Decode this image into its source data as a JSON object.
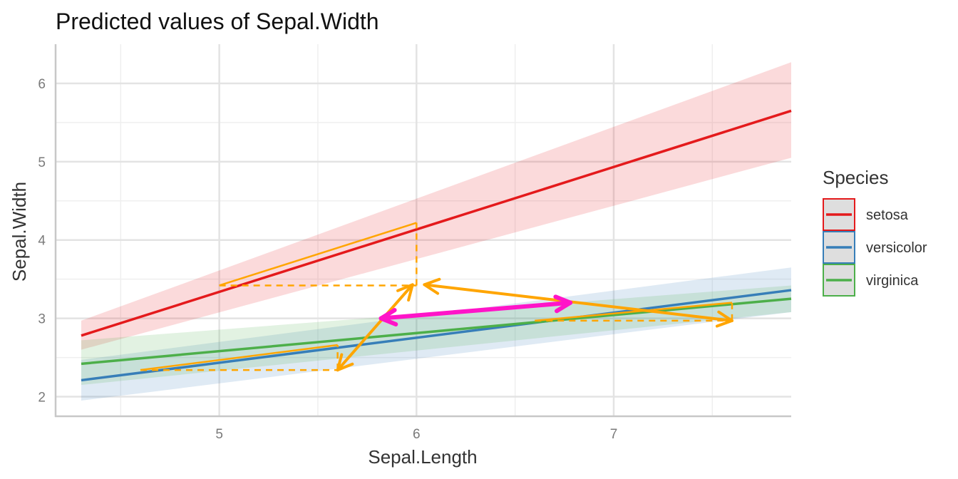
{
  "chart_data": {
    "type": "line",
    "title": "Predicted values of Sepal.Width",
    "xlabel": "Sepal.Length",
    "ylabel": "Sepal.Width",
    "xlim": [
      4.17,
      7.9
    ],
    "ylim": [
      1.75,
      6.5
    ],
    "x_ticks": [
      5,
      6,
      7
    ],
    "x_minor": [
      4.5,
      5.5,
      6.5,
      7.5
    ],
    "y_ticks": [
      2,
      3,
      4,
      5,
      6
    ],
    "y_minor": [
      2.5,
      3.5,
      4.5,
      5.5
    ],
    "grid": true,
    "legend": {
      "title": "Species",
      "position": "right"
    },
    "series": [
      {
        "name": "setosa",
        "color": "#E41A1C",
        "x": [
          4.3,
          7.9
        ],
        "y": [
          2.78,
          5.65
        ],
        "ci_low": [
          2.6,
          5.05
        ],
        "ci_high": [
          2.97,
          6.27
        ]
      },
      {
        "name": "versicolor",
        "color": "#377EB8",
        "x": [
          4.3,
          7.9
        ],
        "y": [
          2.21,
          3.36
        ],
        "ci_low": [
          1.95,
          3.08
        ],
        "ci_high": [
          2.47,
          3.65
        ]
      },
      {
        "name": "virginica",
        "color": "#4DAF4A",
        "x": [
          4.3,
          7.9
        ],
        "y": [
          2.42,
          3.25
        ],
        "ci_low": [
          2.15,
          3.08
        ],
        "ci_high": [
          2.72,
          3.42
        ]
      }
    ],
    "annotations": {
      "highlight_color": "#FFA500",
      "arrow_color": "#FFA500",
      "pink_arrow_color": "#FF14C8",
      "slope_triangles": [
        {
          "series": "setosa",
          "x0": 5.0,
          "x1": 6.0,
          "y0": 3.42,
          "y1": 4.22
        },
        {
          "series": "versicolor",
          "x0": 4.6,
          "x1": 5.6,
          "y0": 2.34,
          "y1": 2.66
        },
        {
          "series": "virginica",
          "x0": 6.6,
          "x1": 7.6,
          "y0": 2.97,
          "y1": 3.2
        }
      ],
      "arrows": [
        {
          "from": [
            5.6,
            2.34
          ],
          "to": [
            5.98,
            3.43
          ],
          "double": true,
          "color": "orange"
        },
        {
          "from": [
            6.04,
            3.43
          ],
          "to": [
            7.6,
            2.97
          ],
          "double": true,
          "color": "orange"
        },
        {
          "from": [
            5.82,
            3.0
          ],
          "to": [
            6.78,
            3.2
          ],
          "double": true,
          "color": "pink"
        }
      ]
    }
  }
}
